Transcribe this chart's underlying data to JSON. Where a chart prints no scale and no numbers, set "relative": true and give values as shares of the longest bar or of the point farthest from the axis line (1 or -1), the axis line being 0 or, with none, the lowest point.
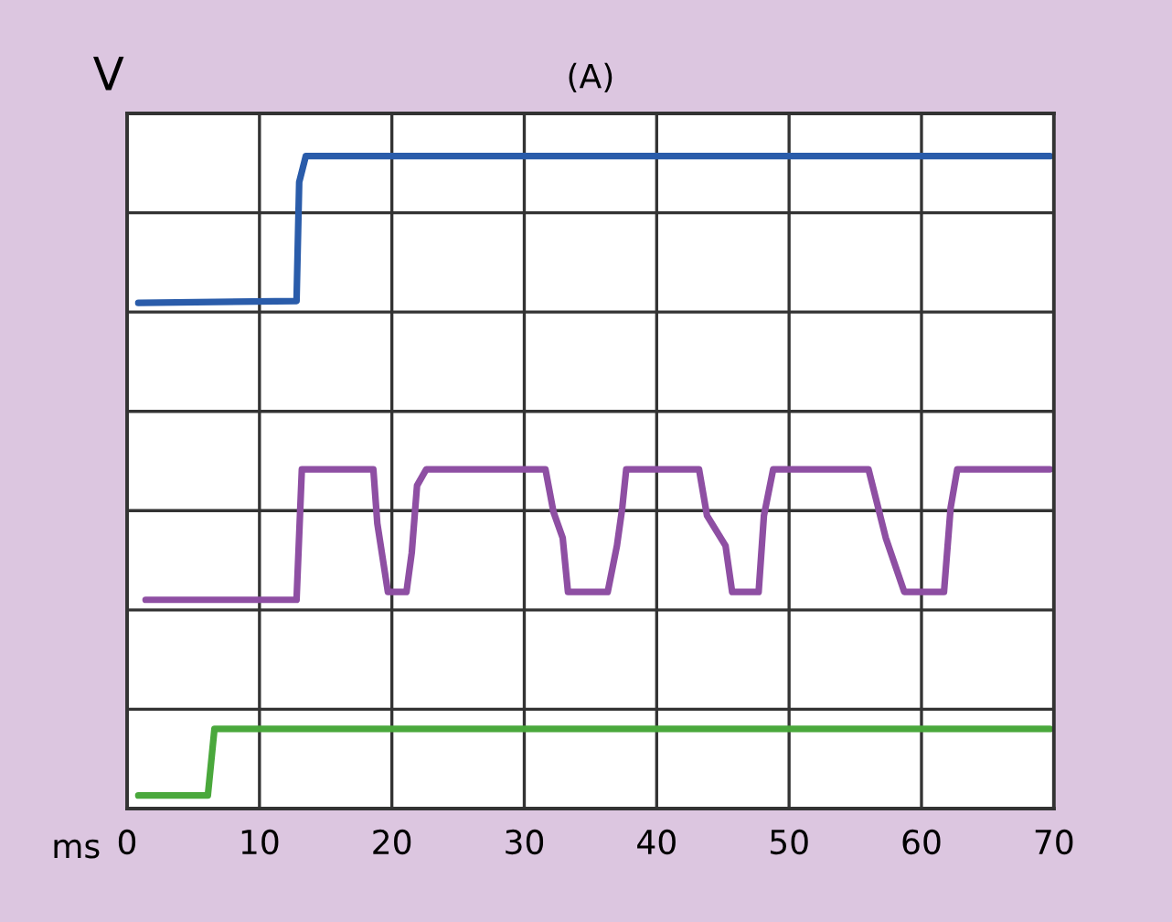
{
  "chart_data": {
    "type": "line",
    "title": "(A)",
    "xlabel": "ms",
    "ylabel": "V",
    "relative": true,
    "xlim": [
      0,
      70
    ],
    "xticks": [
      0,
      10,
      20,
      30,
      40,
      50,
      60,
      70
    ],
    "grid": true,
    "marker": "none",
    "line_style": "solid",
    "series": [
      {
        "color": "#2a5caa",
        "x": [
          0.85,
          12.8,
          13.0,
          13.5,
          69.7
        ],
        "values": [
          0.775,
          0.778,
          0.96,
          1.0,
          1.0
        ]
      },
      {
        "color": "#8e4fa3",
        "x": [
          1.4,
          12.8,
          13.2,
          18.6,
          18.9,
          19.7,
          21.1,
          21.5,
          21.9,
          22.6,
          31.6,
          32.2,
          32.9,
          33.3,
          36.3,
          37.0,
          37.4,
          37.7,
          43.2,
          43.8,
          45.2,
          45.7,
          47.7,
          48.1,
          48.8,
          56.0,
          57.3,
          58.7,
          61.7,
          62.2,
          62.7,
          69.7
        ],
        "values": [
          0.32,
          0.32,
          0.52,
          0.52,
          0.437,
          0.332,
          0.332,
          0.392,
          0.495,
          0.52,
          0.52,
          0.455,
          0.415,
          0.332,
          0.332,
          0.403,
          0.461,
          0.52,
          0.52,
          0.449,
          0.403,
          0.332,
          0.332,
          0.449,
          0.52,
          0.52,
          0.415,
          0.332,
          0.332,
          0.461,
          0.52,
          0.52
        ]
      },
      {
        "color": "#4aa83c",
        "x": [
          0.85,
          6.1,
          6.6,
          69.7
        ],
        "values": [
          0.02,
          0.02,
          0.122,
          0.122
        ]
      }
    ]
  }
}
